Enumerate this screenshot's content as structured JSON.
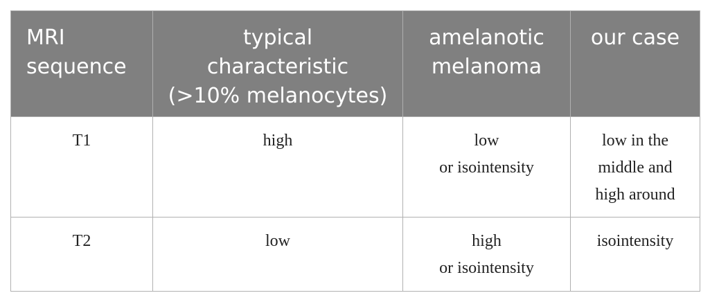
{
  "table": {
    "header": [
      [
        "MRI",
        "sequence"
      ],
      [
        "typical",
        "characteristic",
        "(>10% melanocytes)"
      ],
      [
        "amelanotic",
        "melanoma"
      ],
      [
        "our case"
      ]
    ],
    "rows": [
      [
        [
          "T1"
        ],
        [
          "high"
        ],
        [
          "low",
          "or isointensity"
        ],
        [
          "low in the",
          "middle and",
          "high around"
        ]
      ],
      [
        [
          "T2"
        ],
        [
          "low"
        ],
        [
          "high",
          "or isointensity"
        ],
        [
          "isointensity"
        ]
      ]
    ]
  }
}
